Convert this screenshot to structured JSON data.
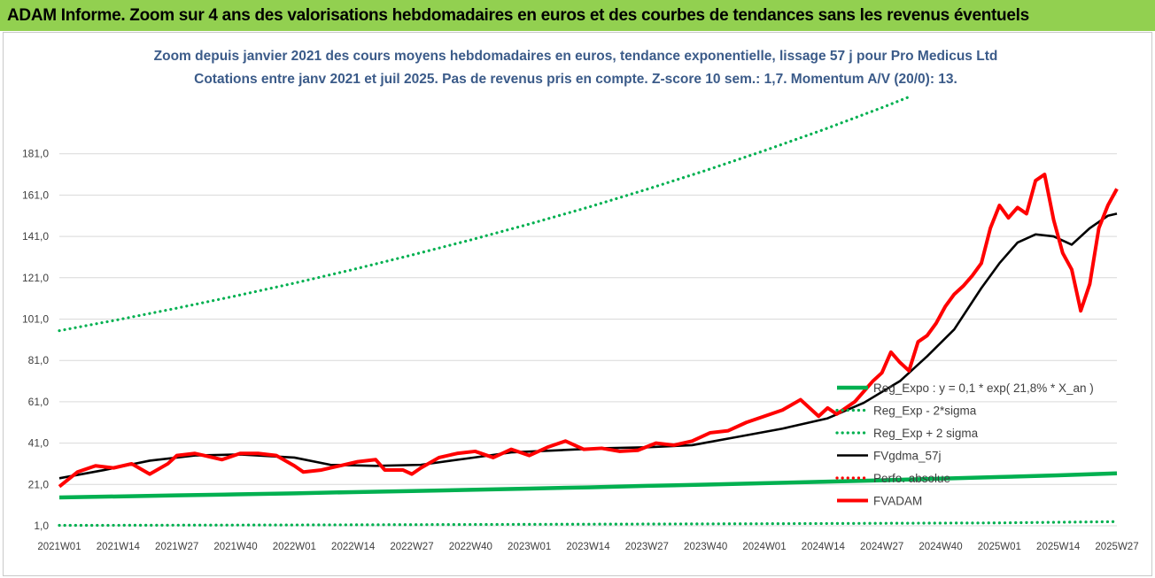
{
  "header": {
    "title": "ADAM Informe. Zoom sur 4 ans des valorisations hebdomadaires en euros et des courbes de tendances sans les revenus éventuels"
  },
  "colors": {
    "header_bg": "#92d050",
    "regexpo": "#00b050",
    "sigma": "#00b050",
    "fvgdma": "#000000",
    "perfo": "#ff0000",
    "fvadam": "#ff0000"
  },
  "chart_data": {
    "type": "line",
    "title": "Zoom depuis janvier 2021 des cours moyens hebdomadaires en euros, tendance exponentielle, lissage 57 j pour Pro Medicus Ltd",
    "subtitle": "Cotations entre janv 2021 et juil 2025. Pas de revenus pris en compte. Z-score 10 sem.: 1,7. Momentum A/V (20/0): 13.",
    "y_ticks": [
      "1,0",
      "21,0",
      "41,0",
      "61,0",
      "81,0",
      "101,0",
      "121,0",
      "141,0",
      "161,0",
      "181,0"
    ],
    "ylim": [
      1,
      201
    ],
    "x_ticks": [
      "2021W01",
      "2021W14",
      "2021W27",
      "2021W40",
      "2022W01",
      "2022W14",
      "2022W27",
      "2022W40",
      "2023W01",
      "2023W14",
      "2023W27",
      "2023W40",
      "2024W01",
      "2024W14",
      "2024W27",
      "2024W40",
      "2025W01",
      "2025W14",
      "2025W27"
    ],
    "grid": "horizontal",
    "legend_position": "right",
    "series": [
      {
        "name": "Reg_Expo : y = 0,1 * exp( 21,8% *  X_an )",
        "style": "solid",
        "color": "#00b050",
        "x": [
          0,
          13,
          26,
          39,
          52,
          65,
          78,
          91,
          104,
          117,
          130,
          143,
          156,
          169,
          182,
          195,
          208,
          221,
          234
        ],
        "values": [
          14.7,
          15.2,
          15.7,
          16.2,
          16.7,
          17.3,
          17.8,
          18.4,
          19.0,
          19.6,
          20.3,
          20.9,
          21.6,
          22.3,
          23.0,
          23.8,
          24.6,
          25.4,
          26.4
        ]
      },
      {
        "name": "Reg_Exp - 2*sigma",
        "style": "dotted",
        "color": "#00b050",
        "x": [
          0,
          52,
          104,
          156,
          208,
          234
        ],
        "values": [
          1.2,
          1.4,
          1.7,
          2.0,
          2.4,
          3.0
        ]
      },
      {
        "name": "Reg_Exp + 2 sigma",
        "style": "dotted",
        "color": "#00b050",
        "x": [
          0,
          13,
          26,
          39,
          52,
          65,
          78,
          91,
          104,
          117,
          130,
          143,
          156,
          169,
          182,
          188
        ],
        "values": [
          95.4,
          100.7,
          106.3,
          112.2,
          118.4,
          125.0,
          132.0,
          139.3,
          147.0,
          155.1,
          163.8,
          172.9,
          182.5,
          192.6,
          203.3,
          208.5
        ]
      },
      {
        "name": "FVgdma_57j",
        "style": "solid",
        "color": "#000000",
        "x": [
          0,
          10,
          20,
          30,
          40,
          52,
          60,
          70,
          80,
          90,
          100,
          110,
          120,
          130,
          140,
          150,
          160,
          170,
          178,
          186,
          192,
          198,
          204,
          208,
          212,
          216,
          220,
          224,
          228,
          232,
          234
        ],
        "values": [
          24.0,
          28.0,
          32.5,
          35.0,
          35.5,
          34.0,
          30.5,
          30.0,
          30.5,
          33.5,
          36.5,
          37.5,
          38.5,
          39.0,
          40.0,
          44.0,
          48.0,
          53.0,
          60.5,
          71.0,
          83.0,
          96.0,
          116.0,
          128.0,
          138.0,
          142.0,
          141.0,
          137.0,
          145.0,
          151.0,
          152.0
        ]
      },
      {
        "name": "Perfo. absolue",
        "style": "dotted",
        "color": "#ff0000",
        "x": [],
        "values": []
      },
      {
        "name": "FVADAM",
        "style": "solid",
        "color": "#ff0000",
        "x": [
          0,
          4,
          8,
          12,
          16,
          20,
          24,
          26,
          30,
          32,
          36,
          40,
          44,
          48,
          52,
          54,
          58,
          62,
          66,
          70,
          72,
          76,
          78,
          80,
          84,
          88,
          92,
          96,
          100,
          104,
          108,
          112,
          116,
          120,
          124,
          128,
          132,
          136,
          140,
          144,
          148,
          152,
          156,
          160,
          164,
          168,
          170,
          172,
          176,
          180,
          182,
          184,
          186,
          188,
          190,
          192,
          194,
          196,
          198,
          200,
          202,
          204,
          206,
          208,
          210,
          212,
          214,
          216,
          218,
          220,
          222,
          224,
          226,
          228,
          230,
          232,
          234
        ],
        "values": [
          20.0,
          27.0,
          30.0,
          29.0,
          31.0,
          26.0,
          31.0,
          35.0,
          36.0,
          35.0,
          33.0,
          36.0,
          36.0,
          35.0,
          30.0,
          27.0,
          28.0,
          30.0,
          32.0,
          33.0,
          28.0,
          28.0,
          26.0,
          29.0,
          34.0,
          36.0,
          37.0,
          34.0,
          38.0,
          35.0,
          39.0,
          42.0,
          38.0,
          38.5,
          37.0,
          37.5,
          41.0,
          40.0,
          42.0,
          46.0,
          47.0,
          51.0,
          54.0,
          57.0,
          62.0,
          54.0,
          58.0,
          55.0,
          61.0,
          71.0,
          75.0,
          85.0,
          80.0,
          76.0,
          90.0,
          93.0,
          99.0,
          107.0,
          113.0,
          117.0,
          122.0,
          128.0,
          145.0,
          156.0,
          150.0,
          155.0,
          152.0,
          168.0,
          171.0,
          149.0,
          133.0,
          125.0,
          105.0,
          118.0,
          145.0,
          156.0,
          164.0
        ]
      }
    ]
  }
}
